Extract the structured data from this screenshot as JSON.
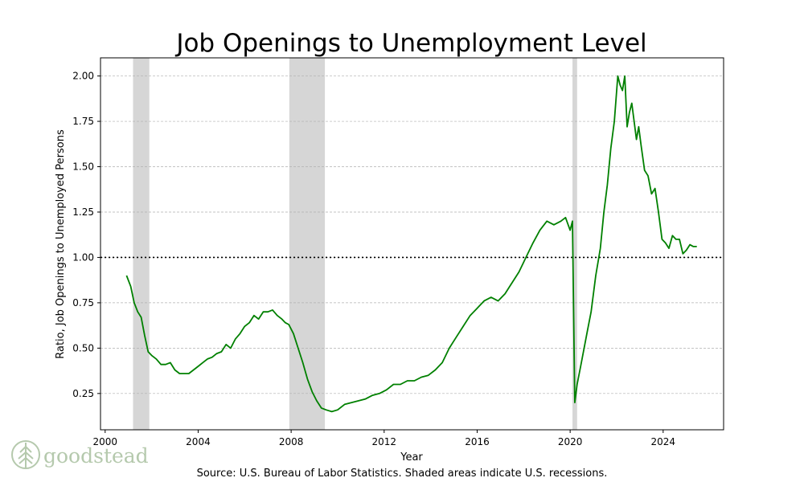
{
  "chart_data": {
    "type": "line",
    "title": "Job Openings to Unemployment Level",
    "xlabel": "Year",
    "ylabel": "Ratio, Job Openings to Unemployed Persons",
    "xlim": [
      1999.8,
      2026.6
    ],
    "ylim": [
      0.05,
      2.1
    ],
    "x_ticks": [
      2000,
      2004,
      2008,
      2012,
      2016,
      2020,
      2024
    ],
    "y_ticks": [
      0.25,
      0.5,
      0.75,
      1.0,
      1.25,
      1.5,
      1.75,
      2.0
    ],
    "y_tick_labels": [
      "0.25",
      "0.50",
      "0.75",
      "1.00",
      "1.25",
      "1.50",
      "1.75",
      "2.00"
    ],
    "grid": "horizontal dashed",
    "reference_line": {
      "y": 1.0,
      "style": "dotted"
    },
    "recessions": [
      [
        2001.2,
        2001.9
      ],
      [
        2007.92,
        2009.45
      ],
      [
        2020.1,
        2020.3
      ]
    ],
    "series": [
      {
        "color": "#008000",
        "x": [
          2000.92,
          2001.1,
          2001.25,
          2001.4,
          2001.55,
          2001.7,
          2001.85,
          2002.0,
          2002.2,
          2002.4,
          2002.6,
          2002.8,
          2003.0,
          2003.2,
          2003.4,
          2003.6,
          2003.8,
          2004.0,
          2004.2,
          2004.4,
          2004.6,
          2004.8,
          2005.0,
          2005.2,
          2005.4,
          2005.6,
          2005.8,
          2006.0,
          2006.2,
          2006.4,
          2006.6,
          2006.8,
          2007.0,
          2007.2,
          2007.4,
          2007.6,
          2007.75,
          2007.9,
          2008.1,
          2008.3,
          2008.5,
          2008.7,
          2008.9,
          2009.1,
          2009.3,
          2009.5,
          2009.75,
          2010.0,
          2010.3,
          2010.6,
          2010.9,
          2011.2,
          2011.5,
          2011.8,
          2012.1,
          2012.4,
          2012.7,
          2013.0,
          2013.3,
          2013.6,
          2013.9,
          2014.2,
          2014.5,
          2014.8,
          2015.1,
          2015.4,
          2015.7,
          2016.0,
          2016.3,
          2016.6,
          2016.9,
          2017.2,
          2017.5,
          2017.8,
          2018.1,
          2018.4,
          2018.7,
          2019.0,
          2019.3,
          2019.6,
          2019.8,
          2020.0,
          2020.1,
          2020.2,
          2020.3,
          2020.45,
          2020.6,
          2020.75,
          2020.9,
          2021.1,
          2021.3,
          2021.45,
          2021.6,
          2021.75,
          2021.9,
          2022.05,
          2022.15,
          2022.25,
          2022.35,
          2022.45,
          2022.55,
          2022.65,
          2022.75,
          2022.85,
          2022.95,
          2023.05,
          2023.2,
          2023.35,
          2023.5,
          2023.65,
          2023.8,
          2023.95,
          2024.1,
          2024.25,
          2024.4,
          2024.55,
          2024.7,
          2024.85,
          2025.0,
          2025.15,
          2025.3,
          2025.45
        ],
        "y": [
          0.9,
          0.84,
          0.75,
          0.7,
          0.67,
          0.57,
          0.48,
          0.46,
          0.44,
          0.41,
          0.41,
          0.42,
          0.38,
          0.36,
          0.36,
          0.36,
          0.38,
          0.4,
          0.42,
          0.44,
          0.45,
          0.47,
          0.48,
          0.52,
          0.5,
          0.55,
          0.58,
          0.62,
          0.64,
          0.68,
          0.66,
          0.7,
          0.7,
          0.71,
          0.68,
          0.66,
          0.64,
          0.63,
          0.58,
          0.5,
          0.42,
          0.33,
          0.26,
          0.21,
          0.17,
          0.16,
          0.15,
          0.16,
          0.19,
          0.2,
          0.21,
          0.22,
          0.24,
          0.25,
          0.27,
          0.3,
          0.3,
          0.32,
          0.32,
          0.34,
          0.35,
          0.38,
          0.42,
          0.5,
          0.56,
          0.62,
          0.68,
          0.72,
          0.76,
          0.78,
          0.76,
          0.8,
          0.86,
          0.92,
          1.0,
          1.08,
          1.15,
          1.2,
          1.18,
          1.2,
          1.22,
          1.15,
          1.2,
          0.2,
          0.3,
          0.4,
          0.5,
          0.6,
          0.7,
          0.9,
          1.05,
          1.25,
          1.4,
          1.6,
          1.75,
          2.0,
          1.95,
          1.92,
          2.0,
          1.72,
          1.8,
          1.85,
          1.75,
          1.65,
          1.72,
          1.62,
          1.48,
          1.45,
          1.35,
          1.38,
          1.25,
          1.1,
          1.08,
          1.05,
          1.12,
          1.1,
          1.1,
          1.02,
          1.04,
          1.07,
          1.06,
          1.06
        ]
      }
    ],
    "source": "Source: U.S. Bureau of Labor Statistics. Shaded areas indicate U.S. recessions."
  },
  "logo": {
    "text": "goodstead",
    "color": "#b5c9ad"
  }
}
